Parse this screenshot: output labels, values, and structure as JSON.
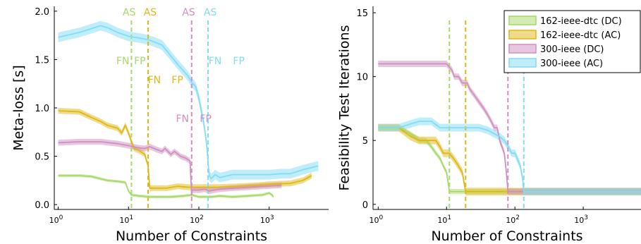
{
  "chart_data": [
    {
      "type": "line",
      "xlabel": "Number of Constraints",
      "ylabel": "Meta-loss [s]",
      "xscale": "log",
      "xlim": [
        0.88,
        7000
      ],
      "ylim": [
        -0.05,
        2.05
      ],
      "xticks": [
        {
          "base": "10",
          "exp": "0"
        },
        {
          "base": "10",
          "exp": "1"
        },
        {
          "base": "10",
          "exp": "2"
        },
        {
          "base": "10",
          "exp": "3"
        }
      ],
      "yticks": [
        "0.0",
        "0.5",
        "1.0",
        "1.5",
        "2.0"
      ],
      "grid": false,
      "series": [
        {
          "name": "162-ieee-dtc (DC)",
          "color": "#a6d96a",
          "points": [
            [
              1,
              0.3
            ],
            [
              2,
              0.3
            ],
            [
              3,
              0.29
            ],
            [
              5,
              0.25
            ],
            [
              7,
              0.24
            ],
            [
              9,
              0.23
            ],
            [
              10,
              0.14
            ],
            [
              11,
              0.1
            ],
            [
              14,
              0.09
            ],
            [
              20,
              0.08
            ],
            [
              40,
              0.08
            ],
            [
              60,
              0.09
            ],
            [
              80,
              0.1
            ],
            [
              100,
              0.08
            ],
            [
              150,
              0.08
            ],
            [
              200,
              0.09
            ],
            [
              300,
              0.08
            ],
            [
              500,
              0.09
            ],
            [
              800,
              0.1
            ],
            [
              1000,
              0.12
            ],
            [
              1100,
              0.1
            ],
            [
              1150,
              0.08
            ]
          ],
          "band": 0.015
        },
        {
          "name": "162-ieee-dtc (AC)",
          "color": "#e0b816",
          "points": [
            [
              1,
              0.97
            ],
            [
              2,
              0.96
            ],
            [
              3,
              0.9
            ],
            [
              4,
              0.86
            ],
            [
              5,
              0.82
            ],
            [
              7,
              0.79
            ],
            [
              8,
              0.74
            ],
            [
              9,
              0.82
            ],
            [
              10,
              0.74
            ],
            [
              11,
              0.65
            ],
            [
              12,
              0.58
            ],
            [
              14,
              0.56
            ],
            [
              17,
              0.52
            ],
            [
              19,
              0.4
            ],
            [
              20,
              0.17
            ],
            [
              25,
              0.17
            ],
            [
              35,
              0.17
            ],
            [
              50,
              0.19
            ],
            [
              70,
              0.18
            ],
            [
              100,
              0.18
            ],
            [
              200,
              0.18
            ],
            [
              400,
              0.19
            ],
            [
              700,
              0.2
            ],
            [
              1000,
              0.21
            ],
            [
              2000,
              0.22
            ],
            [
              3000,
              0.25
            ],
            [
              4000,
              0.3
            ]
          ],
          "band": 0.03
        },
        {
          "name": "300-ieee (DC)",
          "color": "#d08fc0",
          "points": [
            [
              1,
              0.64
            ],
            [
              2,
              0.65
            ],
            [
              4,
              0.65
            ],
            [
              7,
              0.63
            ],
            [
              10,
              0.61
            ],
            [
              13,
              0.59
            ],
            [
              17,
              0.58
            ],
            [
              20,
              0.6
            ],
            [
              25,
              0.57
            ],
            [
              30,
              0.55
            ],
            [
              33,
              0.58
            ],
            [
              40,
              0.52
            ],
            [
              45,
              0.55
            ],
            [
              55,
              0.5
            ],
            [
              65,
              0.48
            ],
            [
              75,
              0.45
            ],
            [
              79,
              0.1
            ],
            [
              80,
              0.15
            ],
            [
              100,
              0.15
            ],
            [
              120,
              0.16
            ],
            [
              140,
              0.14
            ],
            [
              200,
              0.16
            ],
            [
              300,
              0.17
            ],
            [
              500,
              0.18
            ],
            [
              800,
              0.19
            ],
            [
              1500,
              0.2
            ]
          ],
          "band": 0.03
        },
        {
          "name": "300-ieee (AC)",
          "color": "#82dcf5",
          "points": [
            [
              1,
              1.73
            ],
            [
              2,
              1.78
            ],
            [
              3,
              1.82
            ],
            [
              4,
              1.85
            ],
            [
              5,
              1.83
            ],
            [
              7,
              1.78
            ],
            [
              10,
              1.74
            ],
            [
              15,
              1.72
            ],
            [
              20,
              1.7
            ],
            [
              30,
              1.65
            ],
            [
              50,
              1.45
            ],
            [
              70,
              1.33
            ],
            [
              80,
              1.26
            ],
            [
              90,
              1.22
            ],
            [
              100,
              1.1
            ],
            [
              110,
              0.95
            ],
            [
              120,
              0.8
            ],
            [
              130,
              0.6
            ],
            [
              140,
              0.3
            ],
            [
              150,
              0.27
            ],
            [
              170,
              0.31
            ],
            [
              200,
              0.28
            ],
            [
              300,
              0.31
            ],
            [
              500,
              0.31
            ],
            [
              800,
              0.31
            ],
            [
              1000,
              0.31
            ],
            [
              1500,
              0.32
            ],
            [
              2000,
              0.32
            ],
            [
              3000,
              0.36
            ],
            [
              5000,
              0.4
            ]
          ],
          "band": 0.05
        }
      ],
      "vlines": [
        {
          "x": 11,
          "color": "#a6d96a"
        },
        {
          "x": 19,
          "color": "#e0b816"
        },
        {
          "x": 79,
          "color": "#d08fc0"
        },
        {
          "x": 135,
          "color": "#82dcf5"
        }
      ],
      "annotations": [
        {
          "text": "AS",
          "x": 10.2,
          "y": 1.99,
          "color": "#a6d96a"
        },
        {
          "text": "AS",
          "x": 20.3,
          "y": 1.99,
          "color": "#e0b816"
        },
        {
          "text": "AS",
          "x": 71.5,
          "y": 1.99,
          "color": "#d08fc0"
        },
        {
          "text": "AS",
          "x": 145,
          "y": 1.99,
          "color": "#82dcf5"
        },
        {
          "text": "FN",
          "x": 8.3,
          "y": 1.49,
          "color": "#a6d96a"
        },
        {
          "text": "FP",
          "x": 14.5,
          "y": 1.49,
          "color": "#a6d96a"
        },
        {
          "text": "FN",
          "x": 170,
          "y": 1.49,
          "color": "#82dcf5"
        },
        {
          "text": "FP",
          "x": 370,
          "y": 1.49,
          "color": "#82dcf5"
        },
        {
          "text": "FN",
          "x": 23.3,
          "y": 1.29,
          "color": "#e0b816"
        },
        {
          "text": "FP",
          "x": 49.5,
          "y": 1.29,
          "color": "#e0b816"
        },
        {
          "text": "FN",
          "x": 58.5,
          "y": 0.89,
          "color": "#d08fc0"
        },
        {
          "text": "FP",
          "x": 125,
          "y": 0.89,
          "color": "#d08fc0"
        }
      ]
    },
    {
      "type": "line",
      "xlabel": "Number of Constraints",
      "ylabel": "Feasibility Test Iterations",
      "xscale": "log",
      "xlim": [
        0.84,
        7000
      ],
      "ylim": [
        -0.4,
        15.5
      ],
      "xticks": [
        {
          "base": "10",
          "exp": "0"
        },
        {
          "base": "10",
          "exp": "1"
        },
        {
          "base": "10",
          "exp": "2"
        },
        {
          "base": "10",
          "exp": "3"
        }
      ],
      "yticks": [
        "0",
        "5",
        "10",
        "15"
      ],
      "grid": false,
      "legend_position": "top-right",
      "series": [
        {
          "name": "162-ieee-dtc (DC)",
          "color": "#a6d96a",
          "points": [
            [
              1,
              6
            ],
            [
              2,
              6
            ],
            [
              3,
              5.5
            ],
            [
              4,
              5
            ],
            [
              5,
              5
            ],
            [
              6,
              4.5
            ],
            [
              7,
              4
            ],
            [
              8,
              3.6
            ],
            [
              9,
              3
            ],
            [
              10,
              2.5
            ],
            [
              11,
              1
            ],
            [
              100,
              1
            ],
            [
              1000,
              1
            ],
            [
              7000,
              1
            ]
          ],
          "band": 0.2
        },
        {
          "name": "162-ieee-dtc (AC)",
          "color": "#e0b816",
          "points": [
            [
              1,
              6
            ],
            [
              2,
              6
            ],
            [
              3,
              5.3
            ],
            [
              4,
              5
            ],
            [
              5,
              5
            ],
            [
              7,
              5
            ],
            [
              8,
              4.5
            ],
            [
              9,
              4
            ],
            [
              11,
              4
            ],
            [
              13,
              3.5
            ],
            [
              15,
              3
            ],
            [
              17,
              2.5
            ],
            [
              19,
              1
            ],
            [
              100,
              1
            ],
            [
              1000,
              1
            ],
            [
              7000,
              1
            ]
          ],
          "band": 0.3
        },
        {
          "name": "300-ieee (DC)",
          "color": "#d08fc0",
          "points": [
            [
              1,
              11
            ],
            [
              5,
              11
            ],
            [
              10,
              11
            ],
            [
              12,
              10.5
            ],
            [
              13,
              10
            ],
            [
              15,
              10
            ],
            [
              17,
              9.5
            ],
            [
              20,
              9.5
            ],
            [
              22,
              9
            ],
            [
              25,
              8.6
            ],
            [
              30,
              8
            ],
            [
              35,
              7.5
            ],
            [
              40,
              7
            ],
            [
              45,
              6.5
            ],
            [
              50,
              6
            ],
            [
              55,
              6
            ],
            [
              60,
              5
            ],
            [
              70,
              4
            ],
            [
              75,
              2.5
            ],
            [
              79,
              1
            ],
            [
              1000,
              1
            ],
            [
              7000,
              1
            ]
          ],
          "band": 0.25
        },
        {
          "name": "300-ieee (AC)",
          "color": "#82dcf5",
          "points": [
            [
              1,
              6
            ],
            [
              2,
              6
            ],
            [
              3,
              6.3
            ],
            [
              4,
              6.5
            ],
            [
              6,
              6.5
            ],
            [
              8,
              6
            ],
            [
              10,
              6
            ],
            [
              20,
              6
            ],
            [
              30,
              6
            ],
            [
              40,
              5.8
            ],
            [
              60,
              5.3
            ],
            [
              70,
              5
            ],
            [
              80,
              4.5
            ],
            [
              90,
              4
            ],
            [
              100,
              4
            ],
            [
              110,
              3.5
            ],
            [
              120,
              3
            ],
            [
              130,
              2
            ],
            [
              135,
              1
            ],
            [
              1000,
              1
            ],
            [
              7000,
              1
            ]
          ],
          "band": 0.3
        }
      ],
      "vlines": [
        {
          "x": 11,
          "color": "#a6d96a"
        },
        {
          "x": 19,
          "color": "#e0b816"
        },
        {
          "x": 79,
          "color": "#d08fc0"
        },
        {
          "x": 135,
          "color": "#82dcf5"
        }
      ],
      "annotations": []
    }
  ]
}
